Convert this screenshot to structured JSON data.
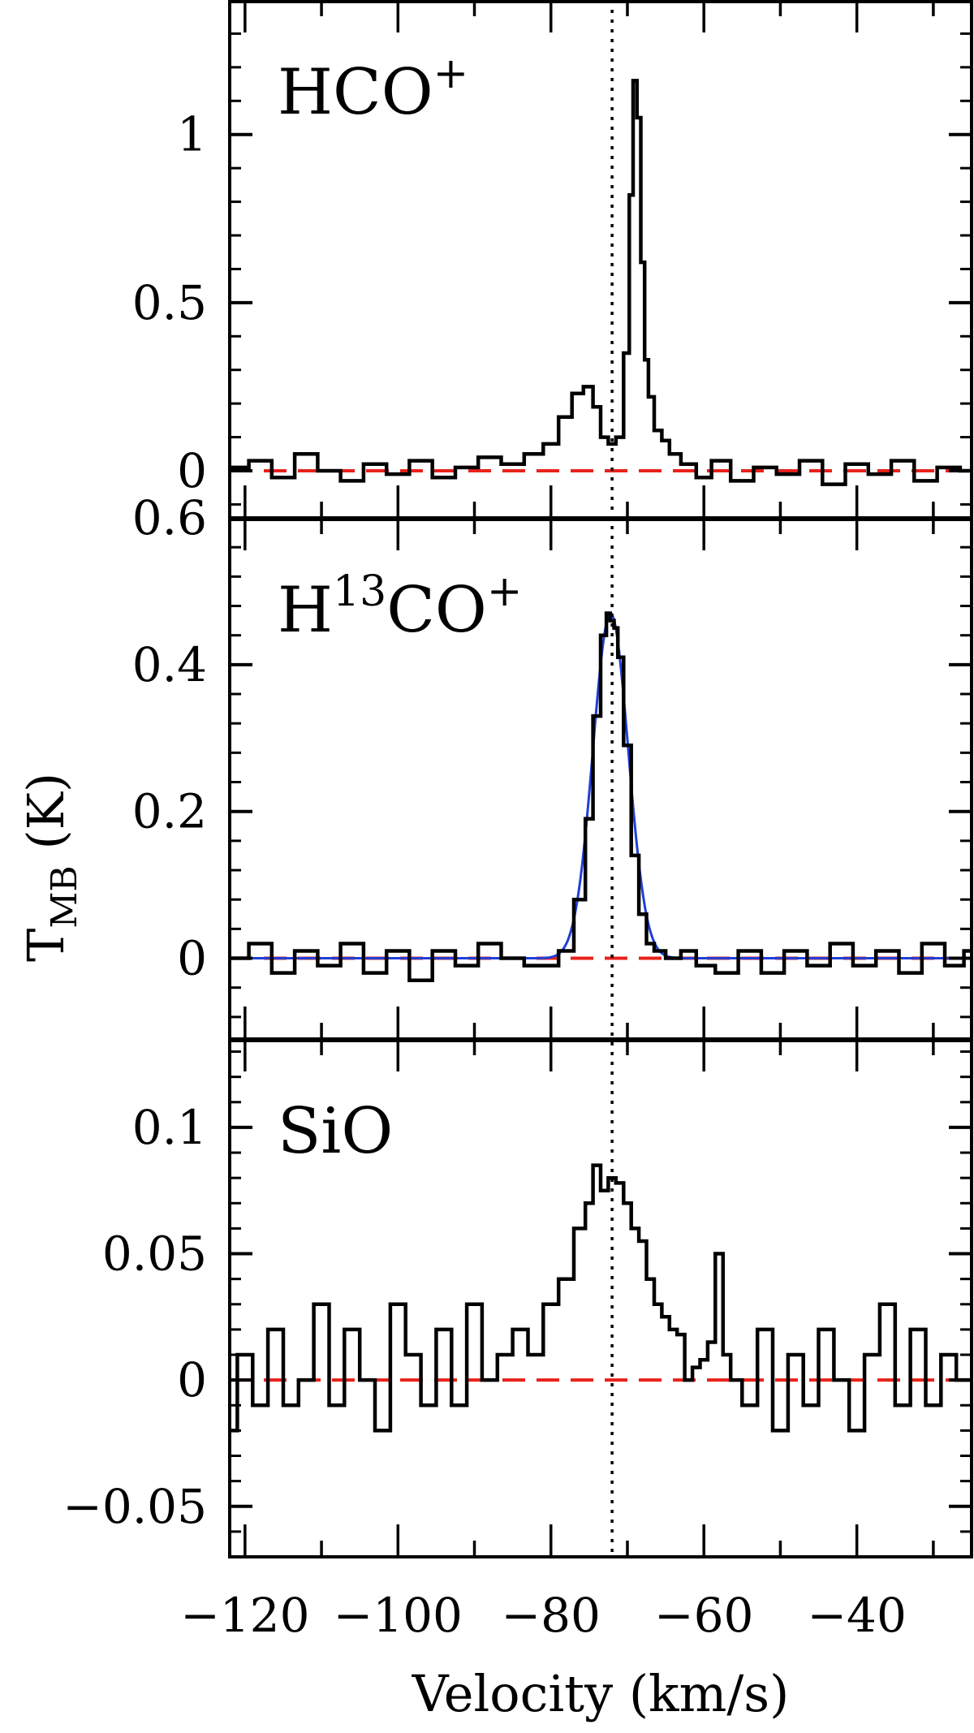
{
  "chart_data": {
    "type": "line",
    "xlabel": "Velocity (km/s)",
    "ylabel": "T",
    "ylabel_sub": "MB",
    "ylabel_unit": "(K)",
    "xlim": [
      -122,
      -25
    ],
    "xticks": [
      -120,
      -100,
      -80,
      -60,
      -40
    ],
    "xtick_labels": [
      "−120",
      "−100",
      "−80",
      "−60",
      "−40"
    ],
    "vline_x": -72,
    "zero_line_color": "#e8221b",
    "fit_color": "#1f3fd6",
    "panels": [
      {
        "label_main": "HCO",
        "label_sup": "+",
        "ylim": [
          -0.14,
          1.4
        ],
        "yticks": [
          0,
          0.5,
          1
        ],
        "ytick_labels": [
          "0",
          "0.5",
          "1"
        ],
        "series": {
          "x": [
            -121,
            -118,
            -115,
            -112,
            -109,
            -106,
            -103,
            -100,
            -97,
            -94,
            -91,
            -88,
            -85,
            -82,
            -80,
            -78,
            -76.5,
            -75,
            -74,
            -73,
            -72,
            -71,
            -70,
            -69.5,
            -69,
            -68.5,
            -68,
            -67.5,
            -67,
            -66,
            -65,
            -64,
            -62,
            -60,
            -58,
            -55,
            -52,
            -49,
            -46,
            -43,
            -40,
            -37,
            -34,
            -31,
            -28,
            -25
          ],
          "y": [
            0.01,
            0.03,
            -0.02,
            0.05,
            0.0,
            -0.03,
            0.02,
            -0.01,
            0.03,
            -0.02,
            0.01,
            0.04,
            0.02,
            0.05,
            0.08,
            0.16,
            0.23,
            0.25,
            0.19,
            0.1,
            0.08,
            0.1,
            0.35,
            0.82,
            1.16,
            1.05,
            0.62,
            0.33,
            0.22,
            0.12,
            0.09,
            0.05,
            0.02,
            -0.02,
            0.03,
            -0.03,
            0.01,
            -0.01,
            0.03,
            -0.04,
            0.02,
            -0.01,
            0.03,
            -0.03,
            0.01,
            0.0
          ]
        }
      },
      {
        "label_main": "H",
        "label_sup": "13",
        "label_main2": "CO",
        "label_sup2": "+",
        "ylim": [
          -0.11,
          0.6
        ],
        "yticks": [
          0,
          0.2,
          0.4,
          0.6
        ],
        "ytick_labels": [
          "0",
          "0.2",
          "0.4",
          "0.6"
        ],
        "series": {
          "x": [
            -121,
            -118,
            -115,
            -112,
            -109,
            -106,
            -103,
            -100,
            -97,
            -94,
            -91,
            -88,
            -85,
            -82,
            -80,
            -78,
            -76,
            -75,
            -74,
            -73,
            -72.5,
            -72,
            -71.5,
            -71,
            -70,
            -69,
            -68,
            -67,
            -66,
            -64,
            -62,
            -60,
            -57,
            -54,
            -51,
            -48,
            -45,
            -42,
            -39,
            -36,
            -33,
            -30,
            -27,
            -25
          ],
          "y": [
            0.0,
            0.02,
            -0.02,
            0.01,
            -0.01,
            0.02,
            -0.02,
            0.01,
            -0.03,
            0.01,
            -0.01,
            0.02,
            0.0,
            -0.01,
            -0.01,
            0.01,
            0.08,
            0.19,
            0.33,
            0.44,
            0.47,
            0.46,
            0.45,
            0.41,
            0.29,
            0.14,
            0.06,
            0.02,
            0.01,
            0.0,
            0.01,
            -0.01,
            -0.02,
            0.01,
            -0.02,
            0.01,
            -0.01,
            0.02,
            -0.01,
            0.01,
            -0.02,
            0.02,
            -0.01,
            0.01
          ]
        },
        "fit": {
          "amplitude": 0.47,
          "center": -72.2,
          "sigma": 2.3
        }
      },
      {
        "label_main": "SiO",
        "ylim": [
          -0.07,
          0.135
        ],
        "yticks": [
          -0.05,
          0,
          0.05,
          0.1
        ],
        "ytick_labels": [
          "−0.05",
          "0",
          "0.05",
          "0.1"
        ],
        "series": {
          "x": [
            -122,
            -120,
            -118,
            -116,
            -114,
            -112,
            -110,
            -108,
            -106,
            -104,
            -102,
            -100,
            -98,
            -96,
            -94,
            -92,
            -90,
            -88,
            -86,
            -84,
            -82,
            -80,
            -78,
            -76,
            -75,
            -74,
            -73,
            -72,
            -71,
            -70,
            -69,
            -68,
            -67,
            -66,
            -65,
            -64,
            -63,
            -62,
            -61,
            -60,
            -59,
            -58,
            -57,
            -56,
            -54,
            -52,
            -50,
            -48,
            -46,
            -44,
            -42,
            -40,
            -38,
            -36,
            -34,
            -32,
            -30,
            -28,
            -26
          ],
          "y": [
            -0.02,
            0.01,
            -0.01,
            0.02,
            -0.01,
            0.0,
            0.03,
            -0.01,
            0.02,
            0.0,
            -0.02,
            0.03,
            0.01,
            -0.01,
            0.02,
            -0.01,
            0.03,
            0.0,
            0.01,
            0.02,
            0.01,
            0.03,
            0.04,
            0.06,
            0.07,
            0.085,
            0.075,
            0.08,
            0.078,
            0.07,
            0.06,
            0.055,
            0.04,
            0.03,
            0.025,
            0.02,
            0.018,
            0.0,
            0.005,
            0.008,
            0.015,
            0.05,
            0.01,
            0.0,
            -0.01,
            0.02,
            -0.02,
            0.01,
            -0.01,
            0.02,
            0.0,
            -0.02,
            0.01,
            0.03,
            -0.01,
            0.02,
            -0.01,
            0.01,
            0.0
          ]
        }
      }
    ]
  }
}
